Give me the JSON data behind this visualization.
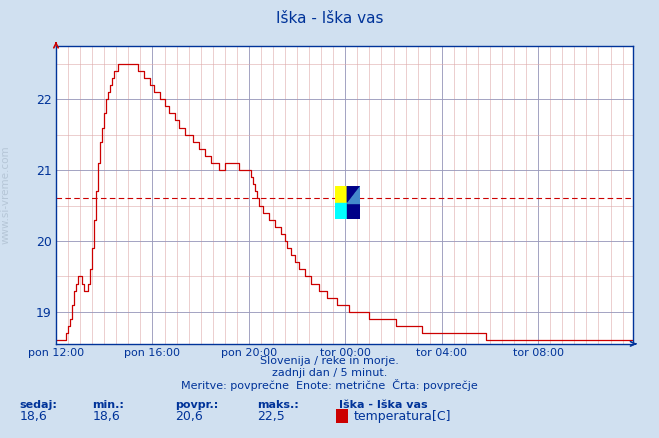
{
  "title": "Iška - Iška vas",
  "bg_color": "#d0e0f0",
  "plot_bg_color": "#ffffff",
  "line_color": "#cc0000",
  "grid_color_major": "#9999bb",
  "grid_color_minor": "#ddaaaa",
  "avg_value": 20.6,
  "y_min": 18.55,
  "y_max": 22.75,
  "y_ticks": [
    19,
    20,
    21,
    22
  ],
  "x_labels": [
    "pon 12:00",
    "pon 16:00",
    "pon 20:00",
    "tor 00:00",
    "tor 04:00",
    "tor 08:00"
  ],
  "x_tick_positions": [
    0,
    48,
    96,
    144,
    192,
    240
  ],
  "total_points": 288,
  "footer_line1": "Slovenija / reke in morje.",
  "footer_line2": "zadnji dan / 5 minut.",
  "footer_line3": "Meritve: povprečne  Enote: metrične  Črta: povprečje",
  "label_sedaj": "sedaj:",
  "label_min": "min.:",
  "label_povpr": "povpr.:",
  "label_maks": "maks.:",
  "val_sedaj": "18,6",
  "val_min": "18,6",
  "val_povpr": "20,6",
  "val_maks": "22,5",
  "legend_station": "Iška - Iška vas",
  "legend_series": "temperatura[C]",
  "text_color_blue": "#003399",
  "ylabel": "www.si-vreme.com",
  "temperature_data": [
    18.6,
    18.6,
    18.6,
    18.6,
    18.6,
    18.7,
    18.8,
    18.9,
    19.1,
    19.3,
    19.4,
    19.5,
    19.5,
    19.4,
    19.3,
    19.3,
    19.4,
    19.6,
    19.9,
    20.3,
    20.7,
    21.1,
    21.4,
    21.6,
    21.8,
    22.0,
    22.1,
    22.2,
    22.3,
    22.4,
    22.4,
    22.5,
    22.5,
    22.5,
    22.5,
    22.5,
    22.5,
    22.5,
    22.5,
    22.5,
    22.5,
    22.4,
    22.4,
    22.4,
    22.3,
    22.3,
    22.3,
    22.2,
    22.2,
    22.1,
    22.1,
    22.1,
    22.0,
    22.0,
    21.9,
    21.9,
    21.8,
    21.8,
    21.8,
    21.7,
    21.7,
    21.6,
    21.6,
    21.6,
    21.5,
    21.5,
    21.5,
    21.5,
    21.4,
    21.4,
    21.4,
    21.3,
    21.3,
    21.3,
    21.2,
    21.2,
    21.2,
    21.1,
    21.1,
    21.1,
    21.1,
    21.0,
    21.0,
    21.0,
    21.1,
    21.1,
    21.1,
    21.1,
    21.1,
    21.1,
    21.1,
    21.0,
    21.0,
    21.0,
    21.0,
    21.0,
    21.0,
    20.9,
    20.8,
    20.7,
    20.6,
    20.5,
    20.5,
    20.4,
    20.4,
    20.4,
    20.3,
    20.3,
    20.3,
    20.2,
    20.2,
    20.2,
    20.1,
    20.1,
    20.0,
    19.9,
    19.9,
    19.8,
    19.8,
    19.7,
    19.7,
    19.6,
    19.6,
    19.6,
    19.5,
    19.5,
    19.5,
    19.4,
    19.4,
    19.4,
    19.4,
    19.3,
    19.3,
    19.3,
    19.3,
    19.2,
    19.2,
    19.2,
    19.2,
    19.2,
    19.1,
    19.1,
    19.1,
    19.1,
    19.1,
    19.1,
    19.0,
    19.0,
    19.0,
    19.0,
    19.0,
    19.0,
    19.0,
    19.0,
    19.0,
    19.0,
    18.9,
    18.9,
    18.9,
    18.9,
    18.9,
    18.9,
    18.9,
    18.9,
    18.9,
    18.9,
    18.9,
    18.9,
    18.9,
    18.8,
    18.8,
    18.8,
    18.8,
    18.8,
    18.8,
    18.8,
    18.8,
    18.8,
    18.8,
    18.8,
    18.8,
    18.8,
    18.7,
    18.7,
    18.7,
    18.7,
    18.7,
    18.7,
    18.7,
    18.7,
    18.7,
    18.7,
    18.7,
    18.7,
    18.7,
    18.7,
    18.7,
    18.7,
    18.7,
    18.7,
    18.7,
    18.7,
    18.7,
    18.7,
    18.7,
    18.7,
    18.7,
    18.7,
    18.7,
    18.7,
    18.7,
    18.7,
    18.7,
    18.7,
    18.6,
    18.6,
    18.6,
    18.6,
    18.6,
    18.6,
    18.6,
    18.6,
    18.6,
    18.6,
    18.6,
    18.6,
    18.6,
    18.6,
    18.6,
    18.6,
    18.6,
    18.6,
    18.6,
    18.6,
    18.6,
    18.6,
    18.6,
    18.6,
    18.6,
    18.6,
    18.6,
    18.6,
    18.6,
    18.6,
    18.6,
    18.6,
    18.6,
    18.6,
    18.6,
    18.6,
    18.6,
    18.6,
    18.6,
    18.6,
    18.6,
    18.6,
    18.6,
    18.6,
    18.6,
    18.6,
    18.6,
    18.6,
    18.6,
    18.6,
    18.6,
    18.6,
    18.6,
    18.6,
    18.6,
    18.6,
    18.6,
    18.6,
    18.6,
    18.6,
    18.6,
    18.6,
    18.6,
    18.6,
    18.6,
    18.6,
    18.6,
    18.6,
    18.6,
    18.6,
    18.6,
    18.6,
    18.6,
    18.6
  ]
}
